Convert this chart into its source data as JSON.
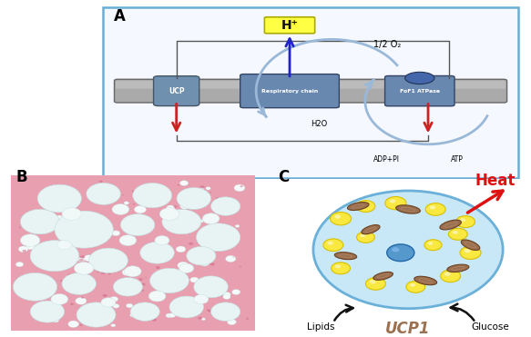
{
  "fig_width": 5.83,
  "fig_height": 3.71,
  "dpi": 100,
  "bg_color": "#ffffff",
  "panel_A": {
    "label": "A",
    "box_color": "#6aaed6",
    "membrane_color": "#999999",
    "ucp_color": "#7090b0",
    "resp_color": "#6888b0",
    "fo_color": "#6888b0",
    "h_plus_box_color": "#ffff44",
    "h_plus_text": "H⁺",
    "half_o2_text": "1/2 O₂",
    "h2o_text": "H2O",
    "adppi_text": "ADP+PI",
    "atp_text": "ATP",
    "ucp_text": "UCP",
    "resp_text": "Respiratory chain",
    "fo_text": "FoF1 ATPase",
    "arrow_up_color": "#2222cc",
    "arrow_down_color": "#cc2222",
    "arrow_curve_color": "#9ab8d8"
  },
  "panel_B": {
    "label": "B",
    "bg_pink": "#e8a0b0",
    "vacuole_color": "#d0e8e8",
    "vacuole_edge": "#b0d0d0"
  },
  "panel_C": {
    "label": "C",
    "cell_fill": "#c8e8f8",
    "cell_edge": "#6ab0d8",
    "nucleus_color": "#5599cc",
    "lipid_fill": "#f8e840",
    "lipid_edge": "#d8c000",
    "mito_fill": "#9b7050",
    "mito_edge": "#6a4020",
    "heat_text": "Heat",
    "heat_color": "#dd1111",
    "lipids_text": "Lipids",
    "ucp1_text": "UCP1",
    "ucp1_color": "#9b7050",
    "glucose_text": "Glucose",
    "arrow_color": "#111111"
  },
  "label_fontsize": 12
}
